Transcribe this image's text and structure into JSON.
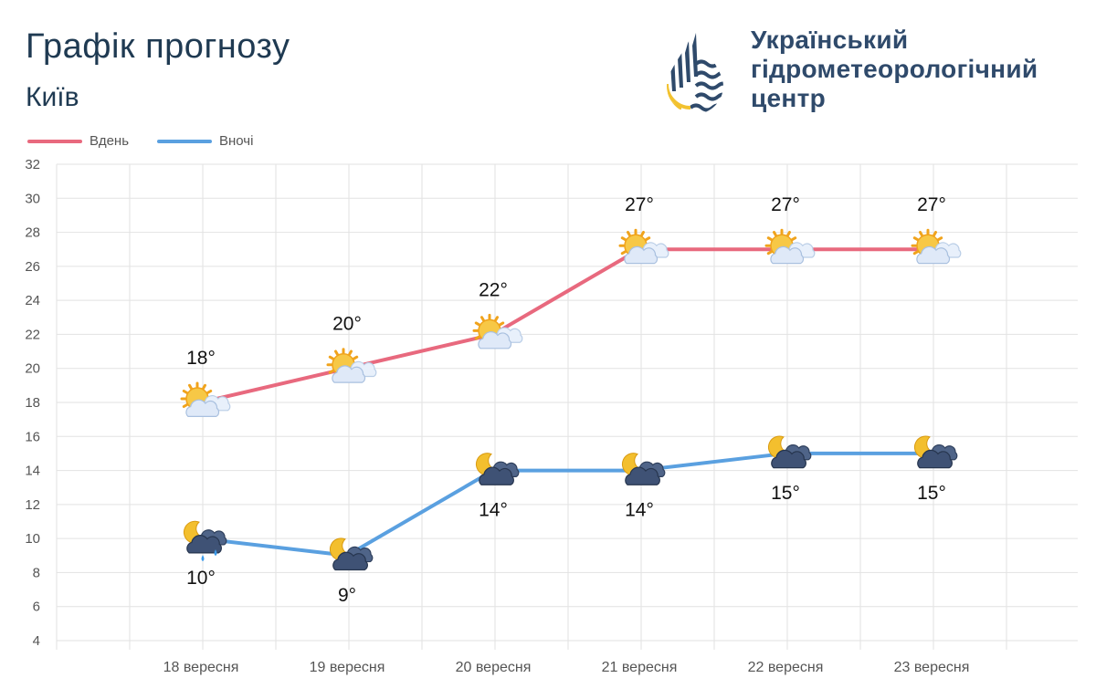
{
  "header": {
    "title": "Графік прогнозу",
    "city": "Київ"
  },
  "logo": {
    "line1": "Український",
    "line2": "гідрометеорологічний",
    "line3": "центр",
    "icon": "water-drop-logo-icon",
    "colors": {
      "primary": "#2f4a6b",
      "accent": "#f2c230"
    }
  },
  "colors": {
    "day": "#e8697e",
    "night": "#5aa0e0",
    "grid": "#e2e2e2"
  },
  "chart_data": {
    "type": "line",
    "title": "Графік прогнозу",
    "subtitle": "Київ",
    "categories": [
      "18 вересня",
      "19 вересня",
      "20 вересня",
      "21 вересня",
      "22 вересня",
      "23 вересня"
    ],
    "series": [
      {
        "name": "Вдень",
        "color": "#e8697e",
        "values": [
          18,
          20,
          22,
          27,
          27,
          27
        ],
        "labels": [
          "18°",
          "20°",
          "22°",
          "27°",
          "27°",
          "27°"
        ],
        "icons": [
          "sun-cloud-icon",
          "sun-cloud-icon",
          "sun-cloud-icon",
          "sun-cloud-icon",
          "sun-cloud-icon",
          "sun-cloud-icon"
        ]
      },
      {
        "name": "Вночі",
        "color": "#5aa0e0",
        "values": [
          10,
          9,
          14,
          14,
          15,
          15
        ],
        "labels": [
          "10°",
          "9°",
          "14°",
          "14°",
          "15°",
          "15°"
        ],
        "icons": [
          "moon-cloud-rain-icon",
          "moon-cloud-icon",
          "moon-cloud-icon",
          "moon-cloud-icon",
          "moon-cloud-icon",
          "moon-cloud-icon"
        ]
      }
    ],
    "ylim": [
      4,
      32
    ],
    "yticks": [
      "4",
      "6",
      "8",
      "10",
      "12",
      "14",
      "16",
      "18",
      "20",
      "22",
      "24",
      "26",
      "28",
      "30",
      "32"
    ],
    "grid": true,
    "legend": "top-left"
  }
}
